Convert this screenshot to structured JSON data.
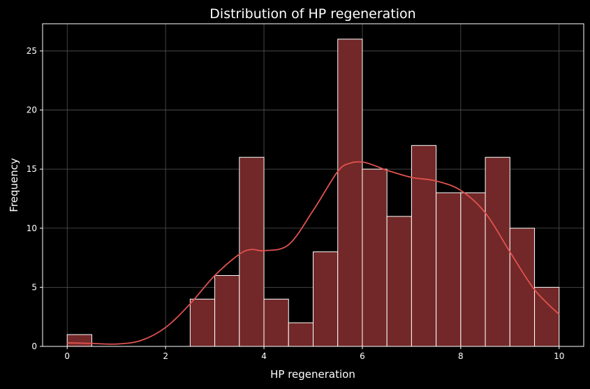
{
  "chart_data": {
    "type": "bar",
    "title": "Distribution of HP regeneration",
    "xlabel": "HP regeneration",
    "ylabel": "Frequency",
    "xlim": [
      -0.5,
      10.5
    ],
    "ylim": [
      0,
      27.3
    ],
    "xticks": [
      0,
      2,
      4,
      6,
      8,
      10
    ],
    "yticks": [
      0,
      5,
      10,
      15,
      20,
      25
    ],
    "grid": true,
    "bin_width": 0.5,
    "bins": [
      {
        "x0": 0.0,
        "x1": 0.5,
        "count": 1
      },
      {
        "x0": 0.5,
        "x1": 1.0,
        "count": 0
      },
      {
        "x0": 1.0,
        "x1": 1.5,
        "count": 0
      },
      {
        "x0": 1.5,
        "x1": 2.0,
        "count": 0
      },
      {
        "x0": 2.0,
        "x1": 2.5,
        "count": 0
      },
      {
        "x0": 2.5,
        "x1": 3.0,
        "count": 4
      },
      {
        "x0": 3.0,
        "x1": 3.5,
        "count": 6
      },
      {
        "x0": 3.5,
        "x1": 4.0,
        "count": 16
      },
      {
        "x0": 4.0,
        "x1": 4.5,
        "count": 4
      },
      {
        "x0": 4.5,
        "x1": 5.0,
        "count": 2
      },
      {
        "x0": 5.0,
        "x1": 5.5,
        "count": 8
      },
      {
        "x0": 5.5,
        "x1": 6.0,
        "count": 26
      },
      {
        "x0": 6.0,
        "x1": 6.5,
        "count": 15
      },
      {
        "x0": 6.5,
        "x1": 7.0,
        "count": 11
      },
      {
        "x0": 7.0,
        "x1": 7.5,
        "count": 17
      },
      {
        "x0": 7.5,
        "x1": 8.0,
        "count": 13
      },
      {
        "x0": 8.0,
        "x1": 8.5,
        "count": 13
      },
      {
        "x0": 8.5,
        "x1": 9.0,
        "count": 16
      },
      {
        "x0": 9.0,
        "x1": 9.5,
        "count": 10
      },
      {
        "x0": 9.5,
        "x1": 10.0,
        "count": 5
      }
    ],
    "kde": {
      "x": [
        0,
        0.5,
        1.0,
        1.5,
        2.0,
        2.5,
        3.0,
        3.5,
        3.75,
        4.0,
        4.5,
        5.0,
        5.5,
        5.75,
        6.0,
        6.25,
        6.5,
        7.0,
        7.5,
        8.0,
        8.5,
        9.0,
        9.5,
        10.0
      ],
      "y": [
        0.3,
        0.25,
        0.2,
        0.5,
        1.6,
        3.6,
        6.0,
        7.8,
        8.2,
        8.1,
        8.6,
        11.5,
        14.8,
        15.5,
        15.6,
        15.3,
        14.9,
        14.3,
        14.0,
        13.2,
        11.3,
        8.0,
        4.8,
        2.7
      ]
    },
    "colors": {
      "bar_fill": "#722828",
      "bar_edge": "#ffffff",
      "kde_line": "#e0524f",
      "background": "#000000",
      "grid": "#555555"
    }
  }
}
